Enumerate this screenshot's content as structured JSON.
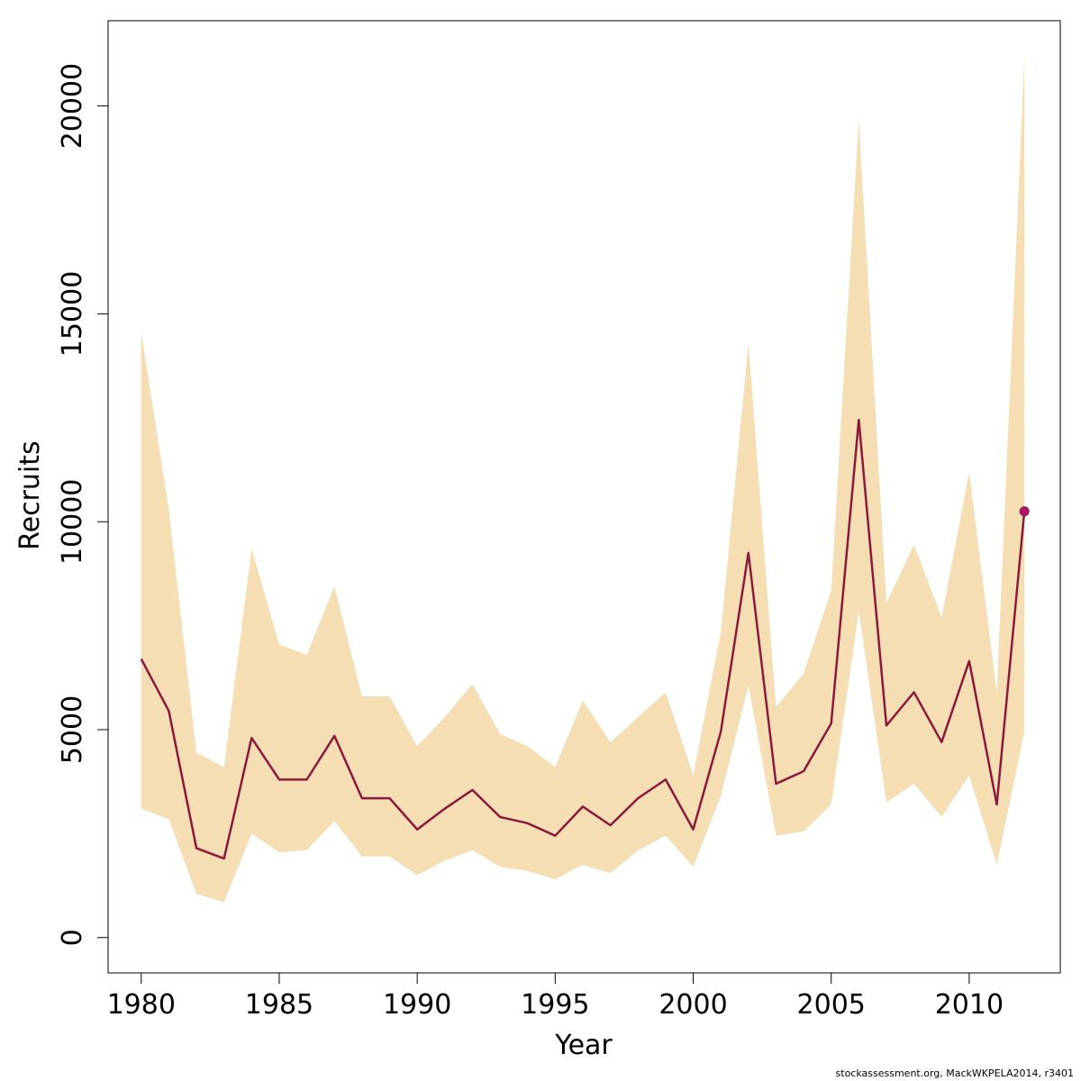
{
  "chart_data": {
    "type": "line",
    "xlabel": "Year",
    "ylabel": "Recruits",
    "xlim": [
      1978.8,
      1980,
      2013.3
    ],
    "x_ticks": [
      1980,
      1985,
      1990,
      1995,
      2000,
      2005,
      2010
    ],
    "y_ticks": [
      0,
      5000,
      10000,
      15000,
      20000
    ],
    "ylim": [
      -850,
      22050
    ],
    "grid": false,
    "colors": {
      "band": "#f5deb3",
      "line": "#8b1a3a",
      "point": "#b0126b",
      "axis": "#000000"
    },
    "x": [
      1980,
      1981,
      1982,
      1983,
      1984,
      1985,
      1986,
      1987,
      1988,
      1989,
      1990,
      1991,
      1992,
      1993,
      1994,
      1995,
      1996,
      1997,
      1998,
      1999,
      2000,
      2001,
      2002,
      2003,
      2004,
      2005,
      2006,
      2007,
      2008,
      2009,
      2010,
      2011,
      2012
    ],
    "series": [
      {
        "values": [
          6700,
          5450,
          2150,
          1900,
          4800,
          3800,
          3800,
          4850,
          3350,
          3350,
          2600,
          3100,
          3550,
          2900,
          2750,
          2450,
          3150,
          2700,
          3350,
          3800,
          2600,
          4950,
          9250,
          3700,
          4000,
          5150,
          12450,
          5100,
          5900,
          4700,
          6650,
          3200,
          10250
        ]
      }
    ],
    "band_upper": [
      14550,
      10300,
      4450,
      4100,
      9350,
      7050,
      6800,
      8450,
      5800,
      5800,
      4600,
      5300,
      6100,
      4900,
      4600,
      4100,
      5700,
      4700,
      5300,
      5900,
      3900,
      7350,
      14300,
      5550,
      6350,
      8350,
      19700,
      8050,
      9450,
      7700,
      11200,
      5900,
      21200
    ],
    "band_lower": [
      3100,
      2850,
      1050,
      850,
      2500,
      2050,
      2100,
      2800,
      1950,
      1950,
      1500,
      1850,
      2100,
      1700,
      1600,
      1400,
      1750,
      1550,
      2100,
      2450,
      1700,
      3400,
      6050,
      2450,
      2550,
      3200,
      7850,
      3250,
      3700,
      2900,
      3900,
      1750,
      4950
    ],
    "highlight_point": {
      "x": 2012,
      "y": 10250
    }
  },
  "footer": "stockassessment.org, MackWKPELA2014, r3401"
}
